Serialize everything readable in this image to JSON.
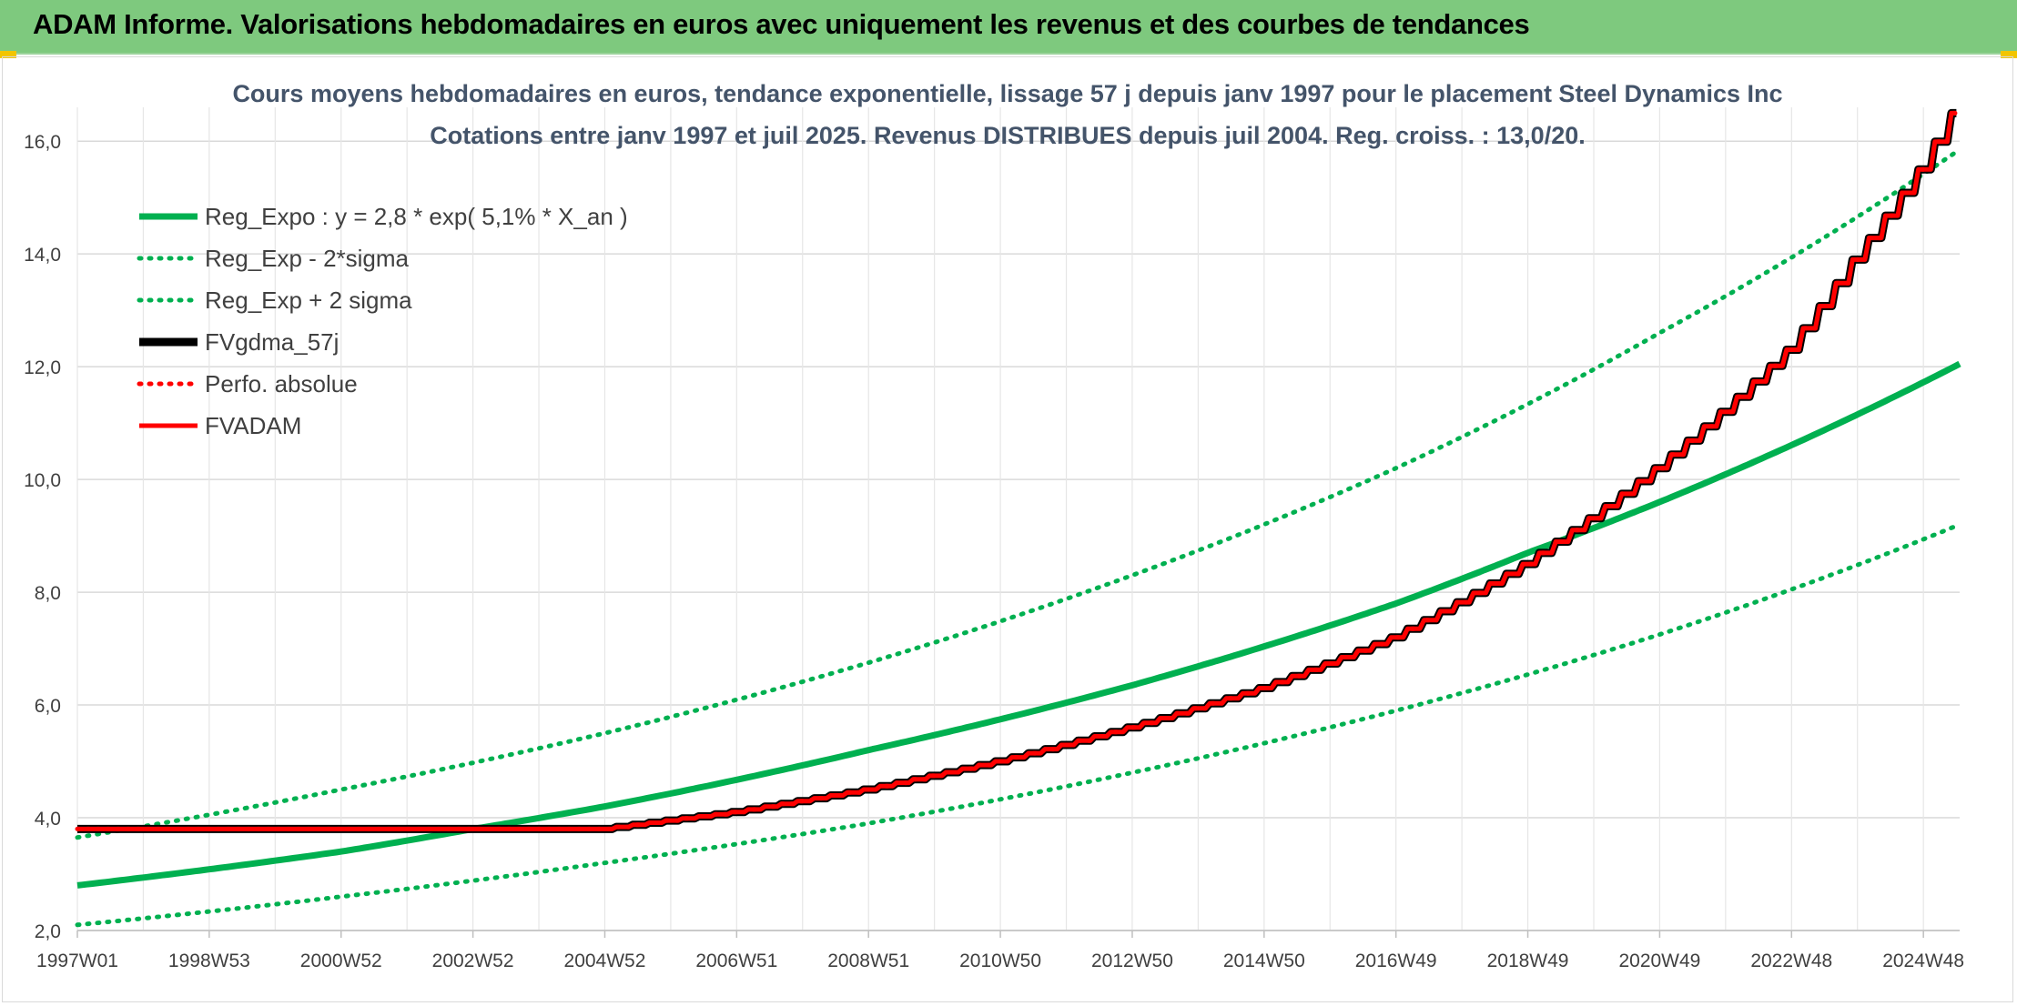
{
  "banner": {
    "title": "ADAM Informe. Valorisations hebdomadaires en euros avec uniquement les revenus et des courbes de tendances"
  },
  "colors": {
    "banner_bg": "#7ec97e",
    "green": "#00b050",
    "red": "#ff0000",
    "black": "#000000",
    "grid": "#d9d9d9",
    "text": "#404040",
    "title": "#44546a"
  },
  "chart_data": {
    "type": "line",
    "title": "Cours moyens hebdomadaires en euros, tendance exponentielle, lissage 57 j depuis janv 1997 pour le placement Steel Dynamics Inc",
    "subtitle": "Cotations entre janv 1997 et juil 2025. Revenus DISTRIBUES depuis juil 2004. Reg. croiss. : 13,0/20.",
    "xlabel": "",
    "ylabel": "",
    "x_range": [
      1997.0,
      2025.55
    ],
    "ylim": [
      2.0,
      16.6
    ],
    "yticks": [
      2.0,
      4.0,
      6.0,
      8.0,
      10.0,
      12.0,
      14.0,
      16.0
    ],
    "ytick_labels": [
      "2,0",
      "4,0",
      "6,0",
      "8,0",
      "10,0",
      "12,0",
      "14,0",
      "16,0"
    ],
    "xticks": [
      {
        "label": "1997W01",
        "x": 1997.0
      },
      {
        "label": "1998W53",
        "x": 1999.0
      },
      {
        "label": "2000W52",
        "x": 2001.0
      },
      {
        "label": "2002W52",
        "x": 2003.0
      },
      {
        "label": "2004W52",
        "x": 2005.0
      },
      {
        "label": "2006W51",
        "x": 2007.0
      },
      {
        "label": "2008W51",
        "x": 2009.0
      },
      {
        "label": "2010W50",
        "x": 2011.0
      },
      {
        "label": "2012W50",
        "x": 2013.0
      },
      {
        "label": "2014W50",
        "x": 2015.0
      },
      {
        "label": "2016W49",
        "x": 2017.0
      },
      {
        "label": "2018W49",
        "x": 2019.0
      },
      {
        "label": "2020W49",
        "x": 2021.0
      },
      {
        "label": "2022W48",
        "x": 2023.0
      },
      {
        "label": "2024W48",
        "x": 2025.0
      }
    ],
    "grid": true,
    "legend_position": "top-left",
    "series": [
      {
        "name": "Reg_Expo : y = 2,8 * exp( 5,1% *  X_an )",
        "color": "#00b050",
        "style": "solid",
        "x": [
          1997.0,
          2001.0,
          2003.0,
          2005.0,
          2009.0,
          2013.0,
          2017.0,
          2019.0,
          2021.0,
          2025.55
        ],
        "y": [
          2.8,
          3.4,
          3.8,
          4.2,
          5.2,
          6.35,
          7.8,
          8.7,
          9.6,
          12.05
        ]
      },
      {
        "name": "Reg_Exp - 2*sigma",
        "color": "#00b050",
        "style": "dotted",
        "x": [
          1997.0,
          2001.0,
          2005.0,
          2009.0,
          2013.0,
          2017.0,
          2021.0,
          2025.55
        ],
        "y": [
          2.1,
          2.6,
          3.2,
          3.9,
          4.8,
          5.9,
          7.25,
          9.2
        ]
      },
      {
        "name": "Reg_Exp + 2 sigma",
        "color": "#00b050",
        "style": "dotted",
        "x": [
          1997.0,
          2001.0,
          2005.0,
          2009.0,
          2013.0,
          2017.0,
          2021.0,
          2025.55
        ],
        "y": [
          3.65,
          4.5,
          5.5,
          6.75,
          8.3,
          10.2,
          12.6,
          15.85
        ]
      },
      {
        "name": "FVgdma_57j",
        "color": "#000000",
        "style": "solid",
        "x": [
          1997.0,
          2005.0,
          2006.0,
          2007.0,
          2009.0,
          2011.0,
          2013.0,
          2015.0,
          2017.0,
          2019.0,
          2021.0,
          2023.0,
          2024.0,
          2025.0,
          2025.55
        ],
        "y": [
          3.8,
          3.8,
          3.95,
          4.1,
          4.5,
          5.0,
          5.6,
          6.3,
          7.2,
          8.5,
          10.2,
          12.3,
          13.9,
          15.5,
          16.6
        ]
      },
      {
        "name": "Perfo. absolue",
        "color": "#ff0000",
        "style": "dotted",
        "x": [
          1997.0,
          2005.0,
          2006.0,
          2007.0,
          2009.0,
          2011.0,
          2013.0,
          2015.0,
          2017.0,
          2019.0,
          2021.0,
          2023.0,
          2024.0,
          2025.0,
          2025.55
        ],
        "y": [
          3.8,
          3.8,
          3.95,
          4.1,
          4.5,
          5.0,
          5.6,
          6.3,
          7.2,
          8.5,
          10.2,
          12.3,
          13.9,
          15.5,
          16.6
        ]
      },
      {
        "name": "FVADAM",
        "color": "#ff0000",
        "style": "solid",
        "x": [
          1997.0,
          2005.0,
          2006.0,
          2007.0,
          2009.0,
          2011.0,
          2013.0,
          2015.0,
          2017.0,
          2019.0,
          2021.0,
          2023.0,
          2024.0,
          2025.0,
          2025.55
        ],
        "y": [
          3.8,
          3.8,
          3.95,
          4.1,
          4.5,
          5.0,
          5.6,
          6.3,
          7.2,
          8.5,
          10.2,
          12.3,
          13.9,
          15.5,
          16.6
        ]
      }
    ]
  }
}
